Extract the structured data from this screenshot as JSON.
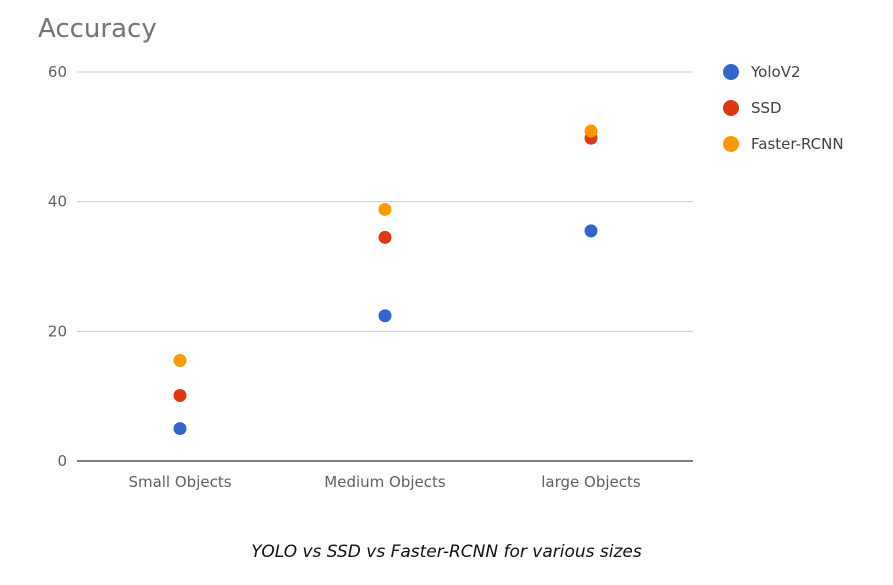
{
  "chart_data": {
    "type": "scatter",
    "title": "Accuracy",
    "categories": [
      "Small Objects",
      "Medium Objects",
      "large Objects"
    ],
    "yticks": [
      0,
      20,
      40,
      60
    ],
    "ylim": [
      0,
      60
    ],
    "grid": true,
    "legend_position": "right",
    "series": [
      {
        "name": "YoloV2",
        "color": "#3366cc",
        "values": [
          5,
          22.4,
          35.5
        ]
      },
      {
        "name": "SSD",
        "color": "#dc3912",
        "values": [
          10.1,
          34.5,
          49.8
        ]
      },
      {
        "name": "Faster-RCNN",
        "color": "#ff9900",
        "values": [
          15.5,
          38.8,
          50.9
        ]
      }
    ]
  },
  "caption": "YOLO vs SSD vs Faster-RCNN for various sizes"
}
